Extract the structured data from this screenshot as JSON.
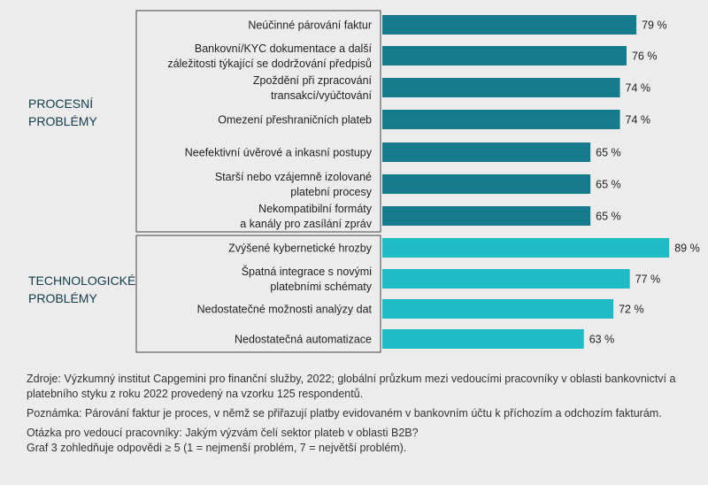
{
  "chart_data": {
    "type": "bar",
    "orientation": "horizontal",
    "groups": [
      {
        "label_lines": [
          "PROCESNÍ",
          "PROBLÉMY"
        ],
        "color": "#157a8c",
        "items": [
          {
            "label_lines": [
              "Neúčinné párování faktur"
            ],
            "value": 79,
            "value_label": "79 %"
          },
          {
            "label_lines": [
              "Bankovní/KYC dokumentace a další",
              "záležitosti týkající se dodržování předpisů"
            ],
            "value": 76,
            "value_label": "76 %"
          },
          {
            "label_lines": [
              "Zpoždění při zpracování",
              "transakcí/vyúčtování"
            ],
            "value": 74,
            "value_label": "74 %"
          },
          {
            "label_lines": [
              "Omezení přeshraničních plateb"
            ],
            "value": 74,
            "value_label": "74 %"
          },
          {
            "label_lines": [
              "Neefektivní úvěrové a inkasní postupy"
            ],
            "value": 65,
            "value_label": "65 %"
          },
          {
            "label_lines": [
              "Starší nebo vzájemně izolované",
              "platební procesy"
            ],
            "value": 65,
            "value_label": "65 %"
          },
          {
            "label_lines": [
              "Nekompatibilní formáty",
              "a kanály pro zasílání zpráv"
            ],
            "value": 65,
            "value_label": "65 %"
          }
        ]
      },
      {
        "label_lines": [
          "TECHNOLOGICKÉ",
          "PROBLÉMY"
        ],
        "color": "#1fbcc6",
        "items": [
          {
            "label_lines": [
              "Zvýšené kybernetické hrozby"
            ],
            "value": 89,
            "value_label": "89 %"
          },
          {
            "label_lines": [
              "Špatná integrace s novými",
              "platebními schématy"
            ],
            "value": 77,
            "value_label": "77 %"
          },
          {
            "label_lines": [
              "Nedostatečné možnosti analýzy dat"
            ],
            "value": 72,
            "value_label": "72 %"
          },
          {
            "label_lines": [
              "Nedostatečná automatizace"
            ],
            "value": 63,
            "value_label": "63 %"
          }
        ]
      }
    ]
  },
  "notes": {
    "source": "Zdroje: Výzkumný institut Capgemini pro finanční služby, 2022; globální průzkum mezi vedoucími pracovníky v oblasti bankovnictví a platebního styku z roku 2022 provedený na vzorku 125 respondentů.",
    "note": "Poznámka: Párování faktur je proces, v němž se přiřazují platby evidovaném v bankovním účtu k příchozím a odchozím fakturám.",
    "question": "Otázka pro vedoucí pracovníky: Jakým výzvám čelí sektor plateb v oblasti B2B?",
    "scale": "Graf 3 zohledňuje odpovědi ≥ 5 (1 = nejmenší problém, 7 = největší problém)."
  }
}
